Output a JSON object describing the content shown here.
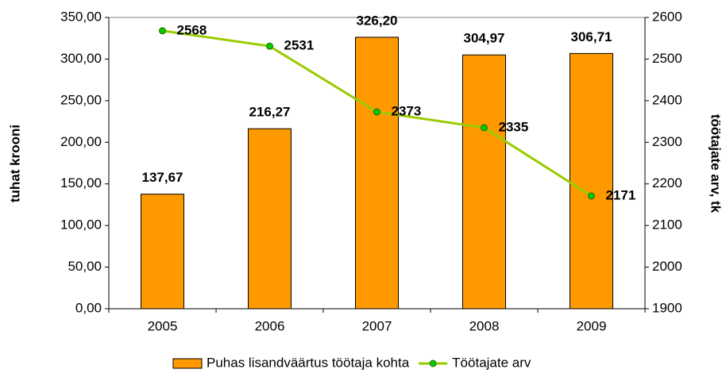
{
  "chart_data": {
    "type": "bar",
    "y_label": "tuhat krooni",
    "y2_label": "töötajate arv, tk",
    "categories": [
      "2005",
      "2006",
      "2007",
      "2008",
      "2009"
    ],
    "series": [
      {
        "name": "Puhas lisandväärtus töötaja kohta",
        "type": "bar",
        "color": "#ff9900",
        "values": [
          137.67,
          216.27,
          326.2,
          304.97,
          306.71
        ],
        "value_labels": [
          "137,67",
          "216,27",
          "326,20",
          "304,97",
          "306,71"
        ]
      },
      {
        "name": "Töötajate arv",
        "type": "line",
        "axis": "y2",
        "color": "#99cc00",
        "marker_color": "#00cc00",
        "values": [
          2568,
          2531,
          2373,
          2335,
          2171
        ]
      }
    ],
    "ylim": [
      0,
      350
    ],
    "yticks": [
      {
        "value": 0,
        "label": "0,00"
      },
      {
        "value": 50,
        "label": "50,00"
      },
      {
        "value": 100,
        "label": "100,00"
      },
      {
        "value": 150,
        "label": "150,00"
      },
      {
        "value": 200,
        "label": "200,00"
      },
      {
        "value": 250,
        "label": "250,00"
      },
      {
        "value": 300,
        "label": "300,00"
      },
      {
        "value": 350,
        "label": "350,00"
      }
    ],
    "y2lim": [
      1900,
      2600
    ],
    "y2ticks": [
      1900,
      2000,
      2100,
      2200,
      2300,
      2400,
      2500,
      2600
    ],
    "grid": false,
    "legend": "bottom"
  }
}
